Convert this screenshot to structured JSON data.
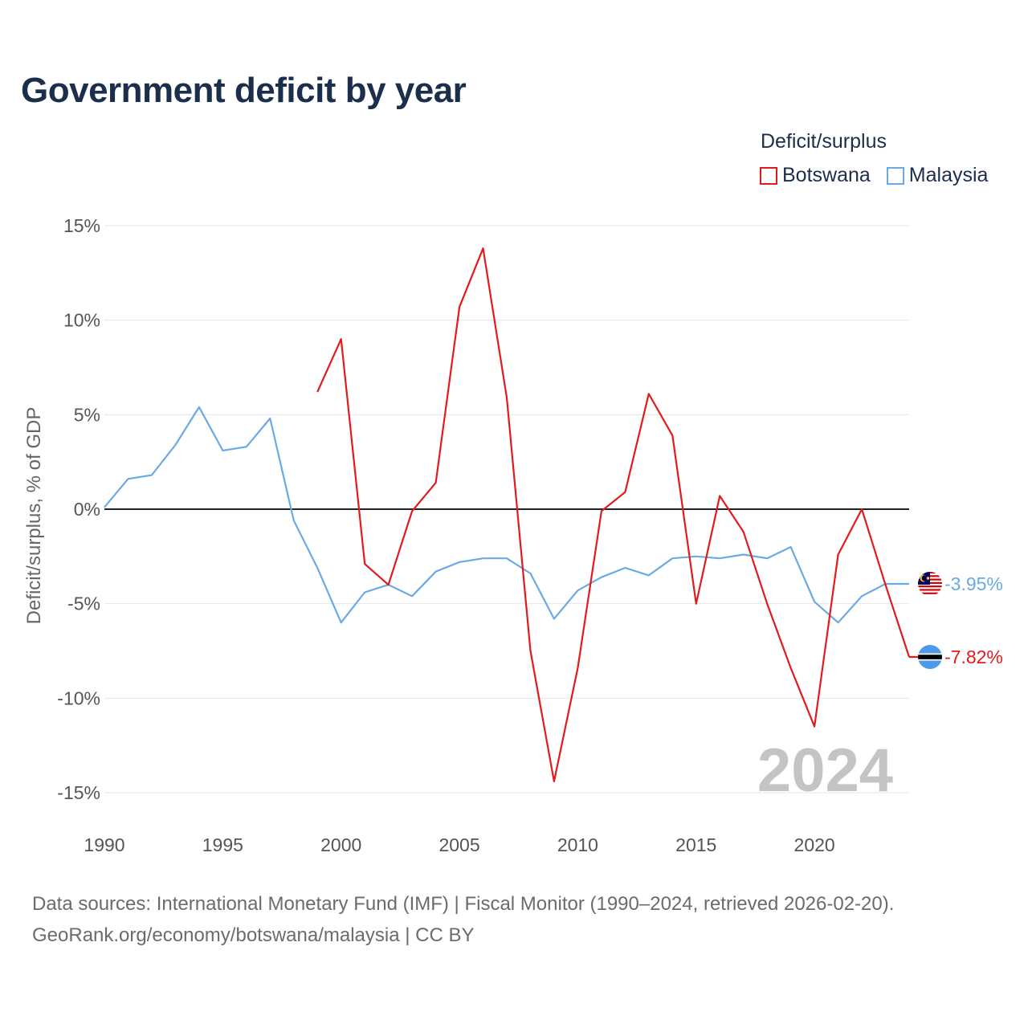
{
  "title": "Government deficit by year",
  "legend": {
    "title": "Deficit/surplus",
    "items": [
      {
        "name": "Botswana",
        "color": "#e31a1c"
      },
      {
        "name": "Malaysia",
        "color": "#6aaae4"
      }
    ]
  },
  "year_watermark": "2024",
  "end_labels": {
    "malaysia": "-3.95%",
    "botswana": "-7.82%"
  },
  "sources": {
    "line1": "Data sources: International Monetary Fund (IMF) | Fiscal Monitor (1990–2024, retrieved 2026-02-20).",
    "line2": "GeoRank.org/economy/botswana/malaysia | CC BY"
  },
  "chart_data": {
    "type": "line",
    "title": "Government deficit by year",
    "xlabel": "",
    "ylabel": "Deficit/surplus, % of GDP",
    "xlim": [
      1990,
      2024
    ],
    "ylim": [
      -15,
      15
    ],
    "x_ticks": [
      1990,
      1995,
      2000,
      2005,
      2010,
      2015,
      2020
    ],
    "y_ticks": [
      {
        "value": 15,
        "label": "15%"
      },
      {
        "value": 10,
        "label": "10%"
      },
      {
        "value": 5,
        "label": "5%"
      },
      {
        "value": 0,
        "label": "0%"
      },
      {
        "value": -5,
        "label": "-5%"
      },
      {
        "value": -10,
        "label": "-10%"
      },
      {
        "value": -15,
        "label": "-15%"
      }
    ],
    "series": [
      {
        "name": "Malaysia",
        "color": "#6aaae4",
        "x": [
          1990,
          1991,
          1992,
          1993,
          1994,
          1995,
          1996,
          1997,
          1998,
          1999,
          2000,
          2001,
          2002,
          2003,
          2004,
          2005,
          2006,
          2007,
          2008,
          2009,
          2010,
          2011,
          2012,
          2013,
          2014,
          2015,
          2016,
          2017,
          2018,
          2019,
          2020,
          2021,
          2022,
          2023,
          2024
        ],
        "values": [
          0.1,
          1.6,
          1.8,
          3.4,
          5.4,
          3.1,
          3.3,
          4.8,
          -0.6,
          -3.1,
          -6.0,
          -4.4,
          -4.0,
          -4.6,
          -3.3,
          -2.8,
          -2.6,
          -2.6,
          -3.4,
          -5.8,
          -4.3,
          -3.6,
          -3.1,
          -3.5,
          -2.6,
          -2.5,
          -2.6,
          -2.4,
          -2.6,
          -2.0,
          -4.9,
          -6.0,
          -4.6,
          -3.95,
          -3.95
        ]
      },
      {
        "name": "Botswana",
        "color": "#e31a1c",
        "x": [
          1999,
          2000,
          2001,
          2002,
          2003,
          2004,
          2005,
          2006,
          2007,
          2008,
          2009,
          2010,
          2011,
          2012,
          2013,
          2014,
          2015,
          2016,
          2017,
          2018,
          2019,
          2020,
          2021,
          2022,
          2023,
          2024
        ],
        "values": [
          6.2,
          9.0,
          -2.9,
          -4.0,
          -0.1,
          1.4,
          10.7,
          13.8,
          5.9,
          -7.5,
          -14.4,
          -8.4,
          -0.1,
          0.9,
          6.1,
          3.9,
          -5.0,
          0.7,
          -1.2,
          -5.0,
          -8.4,
          -11.5,
          -2.4,
          0.0,
          -4.0,
          -7.82
        ]
      }
    ]
  }
}
